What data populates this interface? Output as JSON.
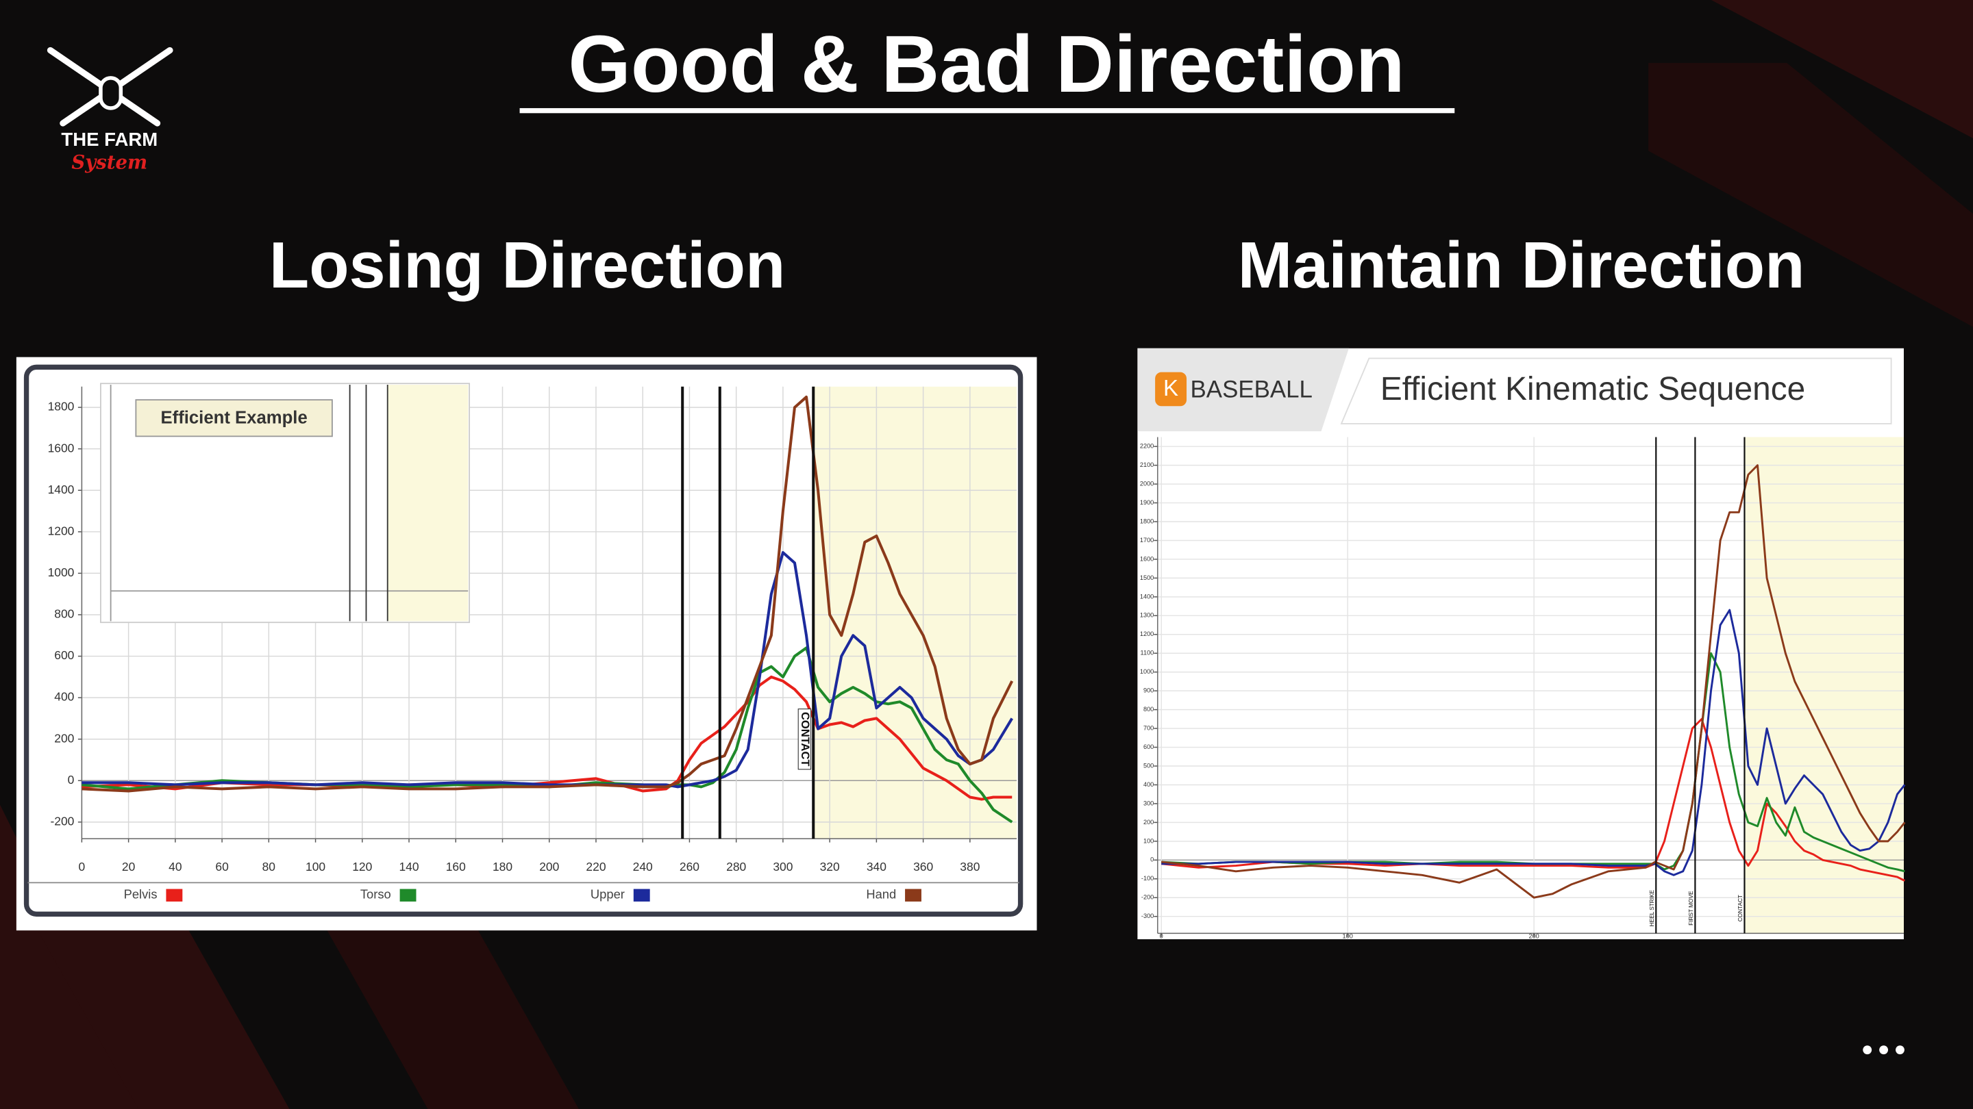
{
  "slide": {
    "title": "Good & Bad Direction",
    "logo": {
      "line1": "THE FARM",
      "line2": "System"
    }
  },
  "chart_data": [
    {
      "type": "line",
      "title": "Losing Direction",
      "inset_label": "Efficient Example",
      "x": [
        0,
        20,
        40,
        60,
        80,
        100,
        120,
        140,
        160,
        180,
        200,
        220,
        240,
        250,
        255,
        260,
        265,
        270,
        275,
        280,
        285,
        290,
        295,
        300,
        305,
        310,
        315,
        320,
        325,
        330,
        335,
        340,
        345,
        350,
        355,
        360,
        365,
        370,
        375,
        380,
        385,
        390,
        398
      ],
      "series": [
        {
          "name": "Pelvis",
          "color": "#e8201a",
          "values": [
            -30,
            -20,
            -40,
            -10,
            -20,
            -20,
            -30,
            -20,
            -20,
            -30,
            -10,
            10,
            -50,
            -40,
            0,
            100,
            180,
            220,
            260,
            320,
            380,
            460,
            500,
            480,
            440,
            380,
            250,
            270,
            280,
            260,
            290,
            300,
            250,
            200,
            130,
            60,
            30,
            0,
            -40,
            -80,
            -90,
            -80,
            -80
          ]
        },
        {
          "name": "Torso",
          "color": "#1f8a2a",
          "values": [
            -20,
            -40,
            -20,
            0,
            -10,
            -20,
            -20,
            -30,
            -20,
            -20,
            -30,
            -10,
            -20,
            -30,
            -20,
            -20,
            -30,
            -10,
            40,
            150,
            350,
            520,
            550,
            500,
            600,
            640,
            450,
            380,
            420,
            450,
            420,
            380,
            370,
            380,
            350,
            250,
            150,
            100,
            80,
            0,
            -60,
            -140,
            -200
          ]
        },
        {
          "name": "Upper",
          "color": "#1c2a9c",
          "values": [
            -10,
            -10,
            -20,
            -10,
            -10,
            -20,
            -10,
            -20,
            -10,
            -10,
            -20,
            -20,
            -20,
            -20,
            -30,
            -20,
            -10,
            0,
            20,
            50,
            150,
            500,
            900,
            1100,
            1050,
            700,
            250,
            300,
            600,
            700,
            650,
            350,
            400,
            450,
            400,
            300,
            250,
            200,
            120,
            80,
            100,
            150,
            300
          ]
        },
        {
          "name": "Hand",
          "color": "#8b3a1a",
          "values": [
            -40,
            -50,
            -30,
            -40,
            -30,
            -40,
            -30,
            -40,
            -40,
            -30,
            -30,
            -20,
            -30,
            -30,
            -10,
            30,
            80,
            100,
            120,
            250,
            400,
            550,
            700,
            1300,
            1800,
            1850,
            1400,
            800,
            700,
            900,
            1150,
            1180,
            1050,
            900,
            800,
            700,
            550,
            300,
            150,
            80,
            100,
            300,
            480
          ]
        }
      ],
      "markers": [
        {
          "x": 257
        },
        {
          "x": 273
        },
        {
          "x": 313,
          "label": "CONTACT"
        }
      ],
      "highlight": [
        313,
        400
      ],
      "xlim": [
        0,
        400
      ],
      "ylim": [
        -280,
        1900
      ],
      "xticks": [
        0,
        20,
        40,
        60,
        80,
        100,
        120,
        140,
        160,
        180,
        200,
        220,
        240,
        260,
        280,
        300,
        320,
        340,
        360,
        380
      ],
      "yticks": [
        -200,
        0,
        200,
        400,
        600,
        800,
        1000,
        1200,
        1400,
        1600,
        1800
      ],
      "grid": true
    },
    {
      "type": "line",
      "title": "Maintain Direction",
      "brand_mark": "K",
      "brand": "BASEBALL",
      "subtitle": "Efficient Kinematic Sequence",
      "x": [
        0,
        20,
        40,
        60,
        80,
        100,
        120,
        140,
        160,
        180,
        200,
        210,
        220,
        240,
        260,
        265,
        270,
        275,
        280,
        285,
        290,
        295,
        300,
        305,
        310,
        315,
        320,
        325,
        330,
        335,
        340,
        345,
        350,
        355,
        360,
        365,
        370,
        375,
        380,
        385,
        390,
        395,
        399
      ],
      "series": [
        {
          "color": "#e8201a",
          "values": [
            -20,
            -40,
            -30,
            -10,
            -20,
            -20,
            -30,
            -20,
            -30,
            -30,
            -30,
            -30,
            -30,
            -40,
            -40,
            -20,
            100,
            300,
            500,
            700,
            750,
            600,
            400,
            200,
            50,
            -30,
            50,
            300,
            250,
            180,
            100,
            50,
            30,
            0,
            -10,
            -20,
            -30,
            -50,
            -60,
            -70,
            -80,
            -90,
            -110
          ]
        },
        {
          "color": "#1f8a2a",
          "values": [
            -10,
            -20,
            -10,
            -10,
            -20,
            -10,
            -10,
            -20,
            -10,
            -10,
            -20,
            -20,
            -20,
            -20,
            -20,
            -20,
            -50,
            -30,
            50,
            300,
            700,
            1100,
            1000,
            600,
            350,
            200,
            180,
            330,
            200,
            130,
            280,
            150,
            120,
            100,
            80,
            60,
            40,
            20,
            0,
            -20,
            -40,
            -50,
            -60
          ]
        },
        {
          "color": "#1c2a9c",
          "values": [
            -20,
            -20,
            -10,
            -10,
            -10,
            -10,
            -20,
            -20,
            -20,
            -20,
            -20,
            -20,
            -20,
            -30,
            -30,
            -20,
            -60,
            -80,
            -60,
            50,
            400,
            900,
            1250,
            1330,
            1100,
            500,
            400,
            700,
            500,
            300,
            380,
            450,
            400,
            350,
            250,
            150,
            80,
            50,
            60,
            100,
            200,
            350,
            400
          ]
        },
        {
          "color": "#8b3a1a",
          "values": [
            -10,
            -30,
            -60,
            -40,
            -30,
            -40,
            -60,
            -80,
            -120,
            -50,
            -200,
            -180,
            -130,
            -60,
            -40,
            -10,
            -30,
            -50,
            50,
            300,
            700,
            1200,
            1700,
            1850,
            1850,
            2050,
            2100,
            1500,
            1300,
            1100,
            950,
            850,
            750,
            650,
            550,
            450,
            350,
            250,
            170,
            100,
            100,
            150,
            200
          ]
        }
      ],
      "markers": [
        {
          "x": 265.5,
          "label": "HEEL STRIKE"
        },
        {
          "x": 286.5,
          "label": "FIRST MOVE"
        },
        {
          "x": 313,
          "label": "CONTACT"
        }
      ],
      "highlight": [
        313,
        398.5
      ],
      "xlim": [
        -2,
        398.5
      ],
      "ylim": [
        -390,
        2250
      ],
      "xticks": [
        0,
        100,
        200
      ],
      "yticks": [
        -300,
        -200,
        -100,
        0,
        100,
        200,
        300,
        400,
        500,
        600,
        700,
        800,
        900,
        1000,
        1100,
        1200,
        1300,
        1400,
        1500,
        1600,
        1700,
        1800,
        1900,
        2000,
        2100,
        2200
      ],
      "grid": true
    }
  ]
}
